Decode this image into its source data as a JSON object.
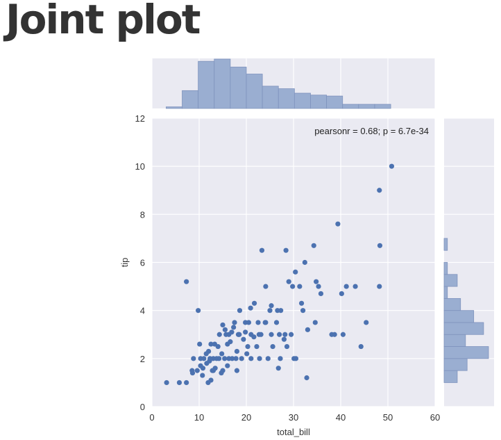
{
  "page": {
    "title": "Joint plot"
  },
  "chart_data": {
    "type": "scatter",
    "title": "",
    "xlabel": "total_bill",
    "ylabel": "tip",
    "xlim": [
      0,
      60
    ],
    "ylim": [
      0,
      12
    ],
    "xticks": [
      0,
      10,
      20,
      30,
      40,
      50,
      60
    ],
    "yticks": [
      0,
      2,
      4,
      6,
      8,
      10,
      12
    ],
    "grid": true,
    "annotation": "pearsonr = 0.68; p = 6.7e-34",
    "colors": {
      "points": "#4c72b0",
      "hist": "#9aaed1",
      "background": "#eaeaf2"
    },
    "points": [
      [
        3.1,
        1.0
      ],
      [
        5.8,
        1.0
      ],
      [
        7.3,
        1.0
      ],
      [
        8.6,
        1.4
      ],
      [
        7.3,
        5.2
      ],
      [
        9.8,
        4.0
      ],
      [
        10.1,
        2.6
      ],
      [
        10.3,
        1.7
      ],
      [
        9.6,
        1.5
      ],
      [
        10.7,
        1.3
      ],
      [
        8.8,
        2.0
      ],
      [
        8.5,
        1.5
      ],
      [
        11.9,
        1.0
      ],
      [
        12.5,
        1.1
      ],
      [
        10.3,
        2.0
      ],
      [
        11.5,
        2.2
      ],
      [
        12.0,
        2.3
      ],
      [
        12.5,
        2.6
      ],
      [
        13.0,
        2.0
      ],
      [
        13.4,
        1.6
      ],
      [
        12.2,
        1.9
      ],
      [
        14.0,
        2.5
      ],
      [
        13.7,
        2.0
      ],
      [
        14.3,
        3.0
      ],
      [
        14.7,
        1.4
      ],
      [
        15.0,
        1.5
      ],
      [
        15.4,
        2.0
      ],
      [
        14.8,
        2.2
      ],
      [
        16.0,
        1.7
      ],
      [
        16.3,
        2.0
      ],
      [
        15.7,
        3.0
      ],
      [
        16.9,
        3.1
      ],
      [
        16.6,
        2.7
      ],
      [
        17.3,
        3.3
      ],
      [
        17.8,
        2.0
      ],
      [
        18.0,
        2.3
      ],
      [
        18.3,
        3.0
      ],
      [
        18.6,
        4.0
      ],
      [
        18.0,
        1.5
      ],
      [
        19.4,
        2.8
      ],
      [
        19.8,
        3.1
      ],
      [
        20.1,
        2.2
      ],
      [
        20.5,
        3.5
      ],
      [
        20.9,
        4.1
      ],
      [
        21.0,
        3.0
      ],
      [
        21.6,
        2.9
      ],
      [
        22.2,
        2.5
      ],
      [
        22.5,
        3.5
      ],
      [
        22.8,
        2.0
      ],
      [
        23.1,
        3.0
      ],
      [
        23.3,
        6.5
      ],
      [
        24.1,
        3.5
      ],
      [
        24.6,
        2.0
      ],
      [
        24.1,
        5.0
      ],
      [
        25.0,
        4.0
      ],
      [
        25.3,
        3.0
      ],
      [
        25.6,
        2.5
      ],
      [
        26.4,
        3.5
      ],
      [
        26.8,
        1.6
      ],
      [
        27.2,
        2.0
      ],
      [
        27.3,
        4.0
      ],
      [
        28.0,
        2.8
      ],
      [
        28.2,
        3.0
      ],
      [
        28.4,
        6.5
      ],
      [
        28.6,
        2.5
      ],
      [
        29.0,
        5.2
      ],
      [
        29.8,
        5.0
      ],
      [
        30.1,
        2.0
      ],
      [
        30.4,
        5.6
      ],
      [
        31.3,
        5.0
      ],
      [
        31.7,
        4.3
      ],
      [
        32.4,
        6.0
      ],
      [
        32.8,
        1.2
      ],
      [
        33.0,
        3.2
      ],
      [
        34.3,
        6.7
      ],
      [
        34.6,
        3.5
      ],
      [
        34.8,
        5.2
      ],
      [
        35.3,
        5.0
      ],
      [
        35.8,
        4.7
      ],
      [
        38.1,
        3.0
      ],
      [
        38.7,
        3.0
      ],
      [
        39.4,
        7.6
      ],
      [
        40.2,
        4.7
      ],
      [
        40.5,
        3.0
      ],
      [
        41.2,
        5.0
      ],
      [
        43.1,
        5.0
      ],
      [
        44.3,
        2.5
      ],
      [
        45.4,
        3.5
      ],
      [
        48.2,
        5.0
      ],
      [
        48.2,
        9.0
      ],
      [
        48.3,
        6.7
      ],
      [
        50.8,
        10.0
      ],
      [
        11.0,
        2.0
      ],
      [
        12.3,
        2.0
      ],
      [
        13.0,
        1.5
      ],
      [
        15.0,
        3.4
      ],
      [
        16.0,
        2.6
      ],
      [
        16.3,
        3.0
      ],
      [
        17.0,
        2.0
      ],
      [
        17.5,
        3.5
      ],
      [
        18.5,
        3.0
      ],
      [
        19.0,
        2.0
      ],
      [
        19.8,
        3.5
      ],
      [
        20.3,
        2.5
      ],
      [
        21.0,
        2.0
      ],
      [
        21.7,
        4.3
      ],
      [
        22.7,
        3.0
      ],
      [
        24.0,
        3.5
      ],
      [
        25.3,
        4.2
      ],
      [
        26.6,
        4.0
      ],
      [
        27.0,
        3.0
      ],
      [
        29.5,
        3.0
      ],
      [
        30.5,
        2.0
      ],
      [
        32.0,
        4.0
      ],
      [
        15.5,
        3.2
      ],
      [
        14.2,
        2.0
      ],
      [
        13.3,
        2.6
      ],
      [
        12.8,
        1.5
      ],
      [
        11.6,
        1.8
      ],
      [
        10.8,
        1.6
      ]
    ],
    "hist_x": {
      "edges": [
        3,
        6.4,
        9.8,
        13.2,
        16.6,
        20.0,
        23.4,
        26.8,
        30.2,
        33.6,
        37.0,
        40.4,
        43.8,
        47.2,
        50.6
      ],
      "heights": [
        0.5,
        5.6,
        14.8,
        15.5,
        13.0,
        10.8,
        7.0,
        6.2,
        4.8,
        4.2,
        3.9,
        1.3,
        1.3,
        1.3
      ]
    },
    "hist_y": {
      "edges": [
        1,
        1.5,
        2,
        2.5,
        3,
        3.5,
        4,
        4.5,
        5,
        5.5,
        6,
        6.5,
        7,
        7.5,
        8,
        8.5,
        9,
        9.5,
        10
      ],
      "heights": [
        4,
        7,
        13.5,
        6.5,
        12,
        9,
        5,
        1,
        4,
        1,
        0,
        1,
        0,
        0,
        0,
        0,
        0,
        0
      ]
    }
  }
}
